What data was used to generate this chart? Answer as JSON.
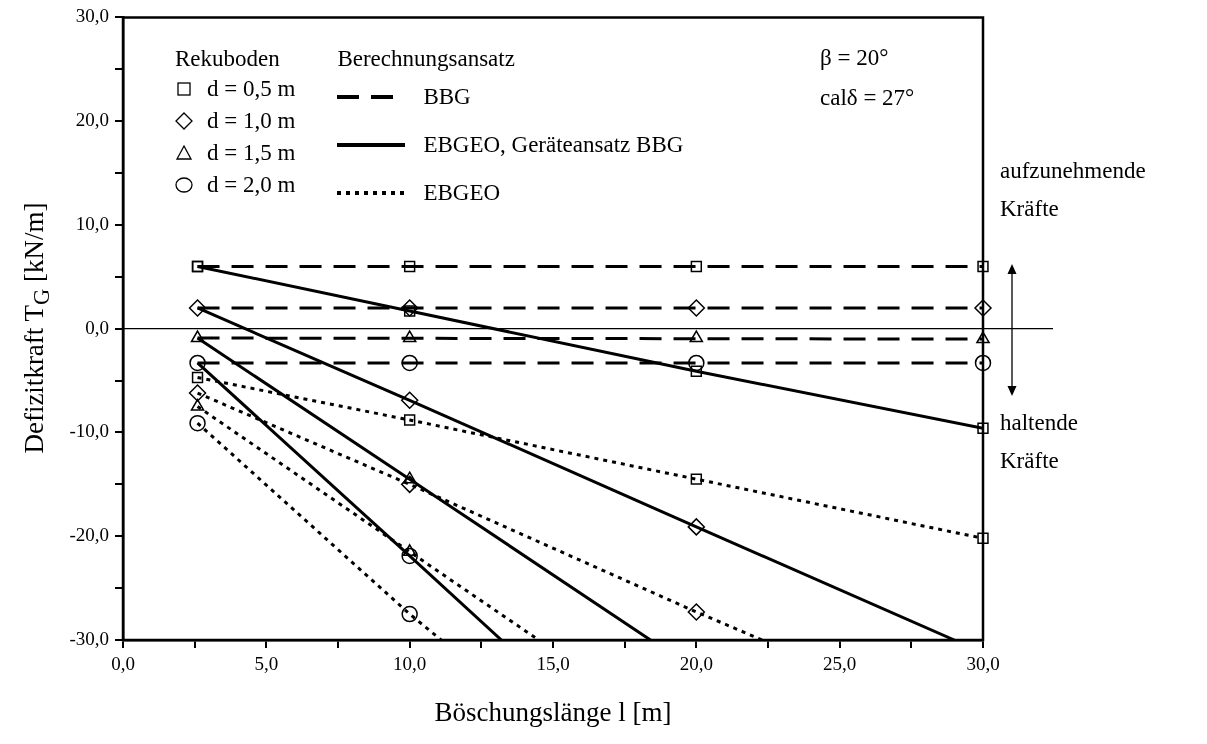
{
  "chart_data": {
    "type": "line",
    "xlabel": "Böschungslänge l [m]",
    "ylabel": "Defizitkraft T$_{G}$ [kN/m]",
    "legend_title": "Rekuboden",
    "legend": "top left",
    "grid": false,
    "xlim": [
      0,
      30
    ],
    "ylim": [
      -30,
      30
    ],
    "xticks": [
      {
        "value": 0,
        "label": "0,0"
      },
      {
        "value": 2.5,
        "label": null
      },
      {
        "value": 5,
        "label": "5,0"
      },
      {
        "value": 7.5,
        "label": null
      },
      {
        "value": 10,
        "label": "10,0"
      },
      {
        "value": 12.5,
        "label": null
      },
      {
        "value": 15,
        "label": "15,0"
      },
      {
        "value": 17.5,
        "label": null
      },
      {
        "value": 20,
        "label": "20,0"
      },
      {
        "value": 22.5,
        "label": null
      },
      {
        "value": 25,
        "label": "25,0"
      },
      {
        "value": 27.5,
        "label": null
      },
      {
        "value": 30,
        "label": "30,0"
      }
    ],
    "yticks": [
      {
        "value": -30,
        "label": "-30,0"
      },
      {
        "value": -25,
        "label": null
      },
      {
        "value": -20,
        "label": "-20,0"
      },
      {
        "value": -15,
        "label": null
      },
      {
        "value": -10,
        "label": "-10,0"
      },
      {
        "value": -5,
        "label": null
      },
      {
        "value": 0,
        "label": "0,0"
      },
      {
        "value": 5,
        "label": null
      },
      {
        "value": 10,
        "label": "10,0"
      },
      {
        "value": 15,
        "label": null
      },
      {
        "value": 20,
        "label": "20,0"
      },
      {
        "value": 25,
        "label": null
      },
      {
        "value": 30,
        "label": "30,0"
      }
    ],
    "ref_lines": [
      {
        "axis": "y",
        "value": 0,
        "color": "#000000"
      }
    ],
    "annotations": [
      "Berechnungsansatz",
      "β = 20°",
      "calδ = 27°",
      "aufzunehmende Kräfte",
      "haltende Kräfte"
    ],
    "series": [
      {
        "name": "BBG",
        "color": "#000000",
        "line_style": "dashed",
        "marker": "none",
        "x": [
          2.6,
          30
        ],
        "values": [
          6,
          6
        ]
      },
      {
        "color": "#000000",
        "line_style": "dashed",
        "marker": "none",
        "x": [
          2.6,
          30
        ],
        "values": [
          2,
          2
        ]
      },
      {
        "color": "#000000",
        "line_style": "dashed",
        "marker": "none",
        "x": [
          2.6,
          30
        ],
        "values": [
          -0.9,
          -1.0
        ]
      },
      {
        "color": "#000000",
        "line_style": "dashed",
        "marker": "none",
        "x": [
          2.6,
          30
        ],
        "values": [
          -3.3,
          -3.3
        ]
      },
      {
        "name": "EBGEO, Geräteansatz BBG",
        "color": "#000000",
        "line_style": "solid",
        "marker": "none",
        "x": [
          2.6,
          10,
          20,
          30
        ],
        "values": [
          6,
          1.7,
          -4.1,
          -9.6
        ]
      },
      {
        "color": "#000000",
        "line_style": "solid",
        "marker": "none",
        "x": [
          2.6,
          10,
          20,
          29.0
        ],
        "values": [
          2,
          -6.9,
          -19.1,
          -30
        ]
      },
      {
        "color": "#000000",
        "line_style": "solid",
        "marker": "none",
        "x": [
          2.6,
          10,
          18.4
        ],
        "values": [
          -0.9,
          -14.5,
          -30
        ]
      },
      {
        "color": "#000000",
        "line_style": "solid",
        "marker": "none",
        "x": [
          2.6,
          10,
          13.2
        ],
        "values": [
          -3.3,
          -21.9,
          -30
        ]
      },
      {
        "name": "EBGEO",
        "color": "#000000",
        "line_style": "dotted",
        "marker": "none",
        "x": [
          2.6,
          10,
          20,
          30
        ],
        "values": [
          -4.7,
          -8.8,
          -14.5,
          -20.2
        ]
      },
      {
        "color": "#000000",
        "line_style": "dotted",
        "marker": "none",
        "x": [
          2.6,
          10,
          20,
          22.3
        ],
        "values": [
          -6.2,
          -15,
          -27.3,
          -30
        ]
      },
      {
        "color": "#000000",
        "line_style": "dotted",
        "marker": "none",
        "x": [
          2.6,
          10,
          14.5
        ],
        "values": [
          -7.5,
          -21.5,
          -30
        ]
      },
      {
        "color": "#000000",
        "line_style": "dotted",
        "marker": "none",
        "x": [
          2.6,
          10,
          11.1
        ],
        "values": [
          -9.1,
          -27.5,
          -30
        ]
      },
      {
        "name": "d = 0,5 m",
        "type": "scatter",
        "color": "#000000",
        "marker": "square",
        "x": [
          2.6,
          10,
          20,
          30,
          2.6,
          10,
          20,
          30,
          2.6,
          10,
          20,
          30
        ],
        "values": [
          6,
          6,
          6,
          6,
          6,
          1.7,
          -4.1,
          -9.6,
          -4.7,
          -8.8,
          -14.5,
          -20.2
        ]
      },
      {
        "name": "d = 1,0 m",
        "type": "scatter",
        "color": "#000000",
        "marker": "diamond",
        "x": [
          2.6,
          10,
          20,
          30,
          10,
          20,
          2.6,
          10,
          20
        ],
        "values": [
          2,
          2,
          2,
          2,
          -6.9,
          -19.1,
          -6.2,
          -15,
          -27.3
        ]
      },
      {
        "name": "d = 1,5 m",
        "type": "scatter",
        "color": "#000000",
        "marker": "triangle",
        "x": [
          2.6,
          10,
          20,
          30,
          10,
          2.6,
          10
        ],
        "values": [
          -0.9,
          -0.9,
          -0.9,
          -1.0,
          -14.5,
          -7.5,
          -21.5
        ]
      },
      {
        "name": "d = 2,0 m",
        "type": "scatter",
        "color": "#000000",
        "marker": "circle",
        "x": [
          2.6,
          10,
          20,
          30,
          10,
          2.6,
          10
        ],
        "values": [
          -3.3,
          -3.3,
          -3.3,
          -3.3,
          -21.9,
          -9.1,
          -27.5
        ]
      }
    ]
  }
}
